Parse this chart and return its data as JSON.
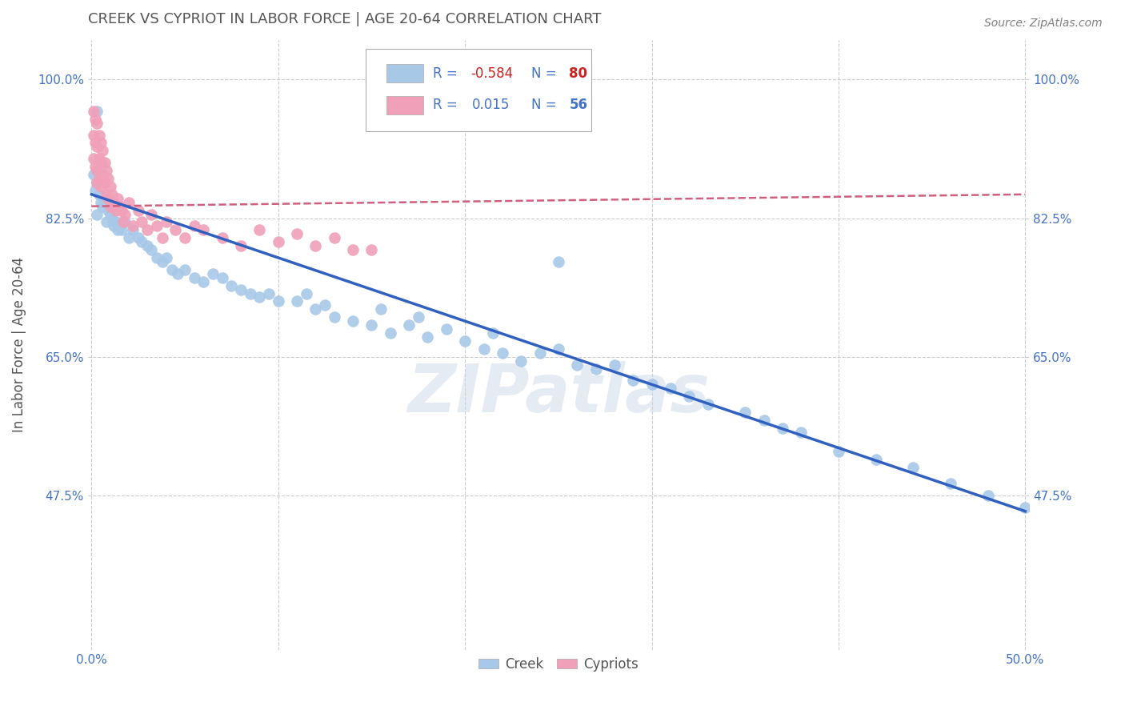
{
  "title": "CREEK VS CYPRIOT IN LABOR FORCE | AGE 20-64 CORRELATION CHART",
  "source": "Source: ZipAtlas.com",
  "ylabel": "In Labor Force | Age 20-64",
  "xlim": [
    -0.002,
    0.502
  ],
  "ylim": [
    0.28,
    1.05
  ],
  "xtick_positions": [
    0.0,
    0.1,
    0.2,
    0.3,
    0.4,
    0.5
  ],
  "xticklabels": [
    "0.0%",
    "",
    "",
    "",
    "",
    "50.0%"
  ],
  "ytick_positions": [
    0.475,
    0.65,
    0.825,
    1.0
  ],
  "yticklabels": [
    "47.5%",
    "65.0%",
    "82.5%",
    "100.0%"
  ],
  "grid_color": "#cccccc",
  "background_color": "#ffffff",
  "watermark": "ZIPatlas",
  "legend_r_creek": "-0.584",
  "legend_n_creek": "80",
  "legend_r_cypriot": "0.015",
  "legend_n_cypriot": "56",
  "creek_color": "#a8c8e8",
  "cypriot_color": "#f0a0b8",
  "creek_line_color": "#3060c0",
  "cypriot_line_color": "#d06080",
  "title_color": "#555555",
  "axis_label_color": "#4472c4",
  "creek_x": [
    0.001,
    0.002,
    0.003,
    0.003,
    0.004,
    0.005,
    0.006,
    0.007,
    0.008,
    0.009,
    0.01,
    0.011,
    0.012,
    0.013,
    0.014,
    0.015,
    0.016,
    0.018,
    0.02,
    0.022,
    0.025,
    0.027,
    0.03,
    0.032,
    0.035,
    0.038,
    0.04,
    0.043,
    0.046,
    0.05,
    0.055,
    0.06,
    0.065,
    0.07,
    0.075,
    0.08,
    0.085,
    0.09,
    0.095,
    0.1,
    0.11,
    0.115,
    0.12,
    0.125,
    0.13,
    0.14,
    0.15,
    0.155,
    0.16,
    0.17,
    0.175,
    0.18,
    0.19,
    0.2,
    0.21,
    0.215,
    0.22,
    0.23,
    0.24,
    0.25,
    0.26,
    0.27,
    0.28,
    0.29,
    0.3,
    0.31,
    0.32,
    0.33,
    0.35,
    0.36,
    0.37,
    0.38,
    0.4,
    0.42,
    0.44,
    0.46,
    0.48,
    0.5,
    0.003,
    0.25
  ],
  "creek_y": [
    0.88,
    0.86,
    0.83,
    0.87,
    0.855,
    0.845,
    0.84,
    0.85,
    0.82,
    0.835,
    0.83,
    0.825,
    0.815,
    0.82,
    0.81,
    0.815,
    0.81,
    0.82,
    0.8,
    0.81,
    0.8,
    0.795,
    0.79,
    0.785,
    0.775,
    0.77,
    0.775,
    0.76,
    0.755,
    0.76,
    0.75,
    0.745,
    0.755,
    0.75,
    0.74,
    0.735,
    0.73,
    0.725,
    0.73,
    0.72,
    0.72,
    0.73,
    0.71,
    0.715,
    0.7,
    0.695,
    0.69,
    0.71,
    0.68,
    0.69,
    0.7,
    0.675,
    0.685,
    0.67,
    0.66,
    0.68,
    0.655,
    0.645,
    0.655,
    0.66,
    0.64,
    0.635,
    0.64,
    0.62,
    0.615,
    0.61,
    0.6,
    0.59,
    0.58,
    0.57,
    0.56,
    0.555,
    0.53,
    0.52,
    0.51,
    0.49,
    0.475,
    0.46,
    0.96,
    0.77
  ],
  "cypriot_x": [
    0.001,
    0.001,
    0.001,
    0.002,
    0.002,
    0.002,
    0.003,
    0.003,
    0.003,
    0.003,
    0.004,
    0.004,
    0.004,
    0.005,
    0.005,
    0.005,
    0.006,
    0.006,
    0.007,
    0.007,
    0.008,
    0.008,
    0.009,
    0.009,
    0.01,
    0.01,
    0.011,
    0.012,
    0.013,
    0.014,
    0.015,
    0.016,
    0.017,
    0.018,
    0.02,
    0.022,
    0.025,
    0.027,
    0.03,
    0.032,
    0.035,
    0.038,
    0.04,
    0.045,
    0.05,
    0.055,
    0.06,
    0.07,
    0.08,
    0.09,
    0.1,
    0.11,
    0.12,
    0.13,
    0.14,
    0.15
  ],
  "cypriot_y": [
    0.96,
    0.93,
    0.9,
    0.95,
    0.92,
    0.89,
    0.945,
    0.915,
    0.885,
    0.87,
    0.93,
    0.9,
    0.875,
    0.92,
    0.895,
    0.865,
    0.91,
    0.88,
    0.895,
    0.87,
    0.885,
    0.855,
    0.875,
    0.85,
    0.865,
    0.84,
    0.855,
    0.845,
    0.835,
    0.85,
    0.84,
    0.835,
    0.82,
    0.83,
    0.845,
    0.815,
    0.835,
    0.82,
    0.81,
    0.83,
    0.815,
    0.8,
    0.82,
    0.81,
    0.8,
    0.815,
    0.81,
    0.8,
    0.79,
    0.81,
    0.795,
    0.805,
    0.79,
    0.8,
    0.785,
    0.785
  ],
  "creek_line_x0": 0.0,
  "creek_line_x1": 0.5,
  "creek_line_y0": 0.855,
  "creek_line_y1": 0.455,
  "cypriot_line_x0": 0.0,
  "cypriot_line_x1": 0.5,
  "cypriot_line_y0": 0.84,
  "cypriot_line_y1": 0.855
}
